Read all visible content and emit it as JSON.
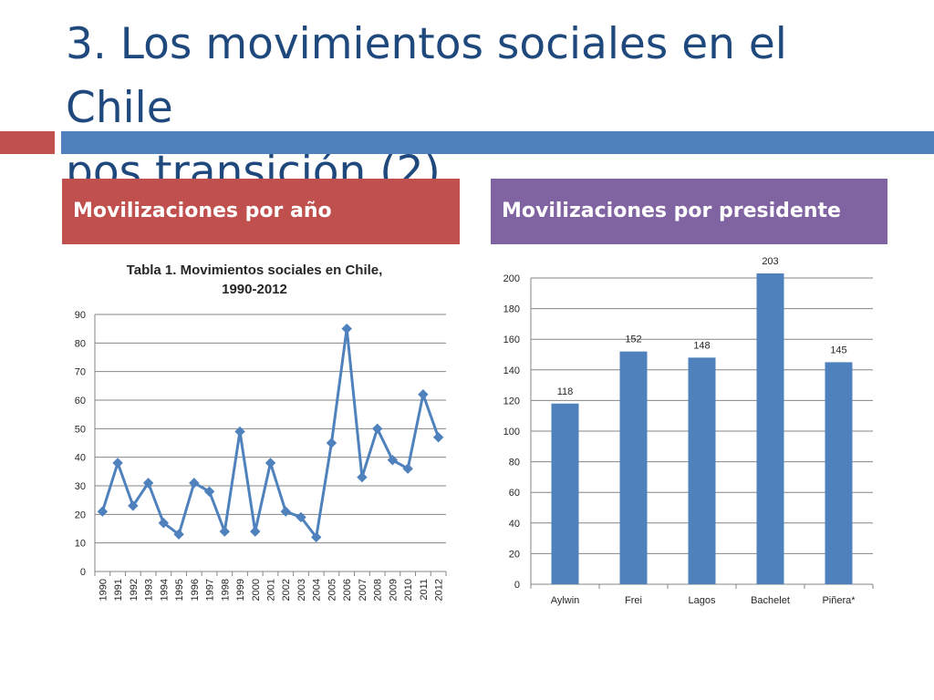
{
  "slide": {
    "title_line1": "3. Los movimientos sociales en el Chile",
    "title_line2": "pos transición (2)"
  },
  "headers": {
    "left": "Movilizaciones por año",
    "right": "Movilizaciones por presidente"
  },
  "colors": {
    "title": "#1F497D",
    "accent_red": "#C0504D",
    "accent_blue": "#4F81BD",
    "accent_purple": "#8064A2",
    "series": "#4F81BD",
    "grid": "#868686"
  },
  "chart_data": [
    {
      "type": "line",
      "title_line1": "Tabla 1. Movimientos sociales en Chile,",
      "title_line2": "1990-2012",
      "marker": "diamond",
      "x": [
        "1990",
        "1991",
        "1992",
        "1993",
        "1994",
        "1995",
        "1996",
        "1997",
        "1998",
        "1999",
        "2000",
        "2001",
        "2002",
        "2003",
        "2004",
        "2005",
        "2006",
        "2007",
        "2008",
        "2009",
        "2010",
        "2011",
        "2012"
      ],
      "values": [
        21,
        38,
        23,
        31,
        17,
        13,
        31,
        28,
        14,
        49,
        14,
        38,
        21,
        19,
        12,
        45,
        85,
        33,
        50,
        39,
        36,
        62,
        47
      ],
      "ylim": [
        0,
        90
      ],
      "yticks": [
        0,
        10,
        20,
        30,
        40,
        50,
        60,
        70,
        80,
        90
      ],
      "grid": true,
      "legend": "none"
    },
    {
      "type": "bar",
      "categories": [
        "Aylwin",
        "Frei",
        "Lagos",
        "Bachelet",
        "Piñera*"
      ],
      "values": [
        118,
        152,
        148,
        203,
        145
      ],
      "data_labels": [
        "118",
        "152",
        "148",
        "203",
        "145"
      ],
      "ylim": [
        0,
        200
      ],
      "yticks": [
        0,
        20,
        40,
        60,
        80,
        100,
        120,
        140,
        160,
        180,
        200
      ],
      "grid": true,
      "legend": "none"
    }
  ]
}
